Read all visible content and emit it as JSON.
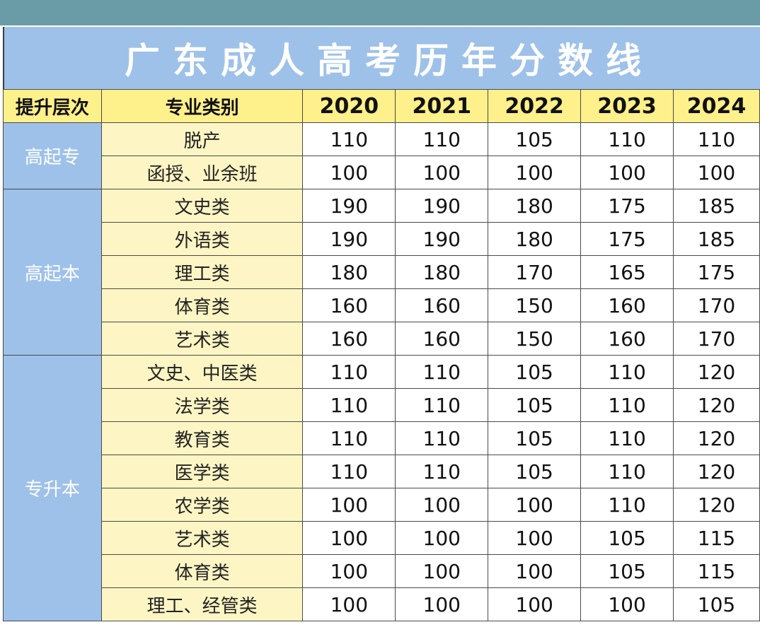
{
  "title": "广东成人高考历年分数线",
  "headers": {
    "level": "提升层次",
    "category": "专业类别",
    "years": [
      "2020",
      "2021",
      "2022",
      "2023",
      "2024"
    ]
  },
  "groups": [
    {
      "level": "高起专",
      "rows": [
        {
          "category": "脱产",
          "values": [
            "110",
            "110",
            "105",
            "110",
            "110"
          ]
        },
        {
          "category": "函授、业余班",
          "values": [
            "100",
            "100",
            "100",
            "100",
            "100"
          ]
        }
      ]
    },
    {
      "level": "高起本",
      "rows": [
        {
          "category": "文史类",
          "values": [
            "190",
            "190",
            "180",
            "175",
            "185"
          ]
        },
        {
          "category": "外语类",
          "values": [
            "190",
            "190",
            "180",
            "175",
            "185"
          ]
        },
        {
          "category": "理工类",
          "values": [
            "180",
            "180",
            "170",
            "165",
            "175"
          ]
        },
        {
          "category": "体育类",
          "values": [
            "160",
            "160",
            "150",
            "160",
            "170"
          ]
        },
        {
          "category": "艺术类",
          "values": [
            "160",
            "160",
            "150",
            "160",
            "170"
          ]
        }
      ]
    },
    {
      "level": "专升本",
      "rows": [
        {
          "category": "文史、中医类",
          "values": [
            "110",
            "110",
            "105",
            "110",
            "120"
          ]
        },
        {
          "category": "法学类",
          "values": [
            "110",
            "110",
            "105",
            "110",
            "120"
          ]
        },
        {
          "category": "教育类",
          "values": [
            "110",
            "110",
            "105",
            "110",
            "120"
          ]
        },
        {
          "category": "医学类",
          "values": [
            "110",
            "110",
            "105",
            "110",
            "120"
          ]
        },
        {
          "category": "农学类",
          "values": [
            "100",
            "100",
            "100",
            "110",
            "120"
          ]
        },
        {
          "category": "艺术类",
          "values": [
            "100",
            "100",
            "100",
            "105",
            "115"
          ]
        },
        {
          "category": "体育类",
          "values": [
            "100",
            "100",
            "100",
            "105",
            "115"
          ]
        },
        {
          "category": "理工、经管类",
          "values": [
            "100",
            "100",
            "100",
            "100",
            "105"
          ]
        }
      ]
    }
  ],
  "colors": {
    "header_bar": "#6a9ca8",
    "title_bg": "#9ec1ea",
    "header_yellow": "#fef08a",
    "category_bg": "#fdf6c4",
    "level_bg": "#9ec1ea"
  }
}
